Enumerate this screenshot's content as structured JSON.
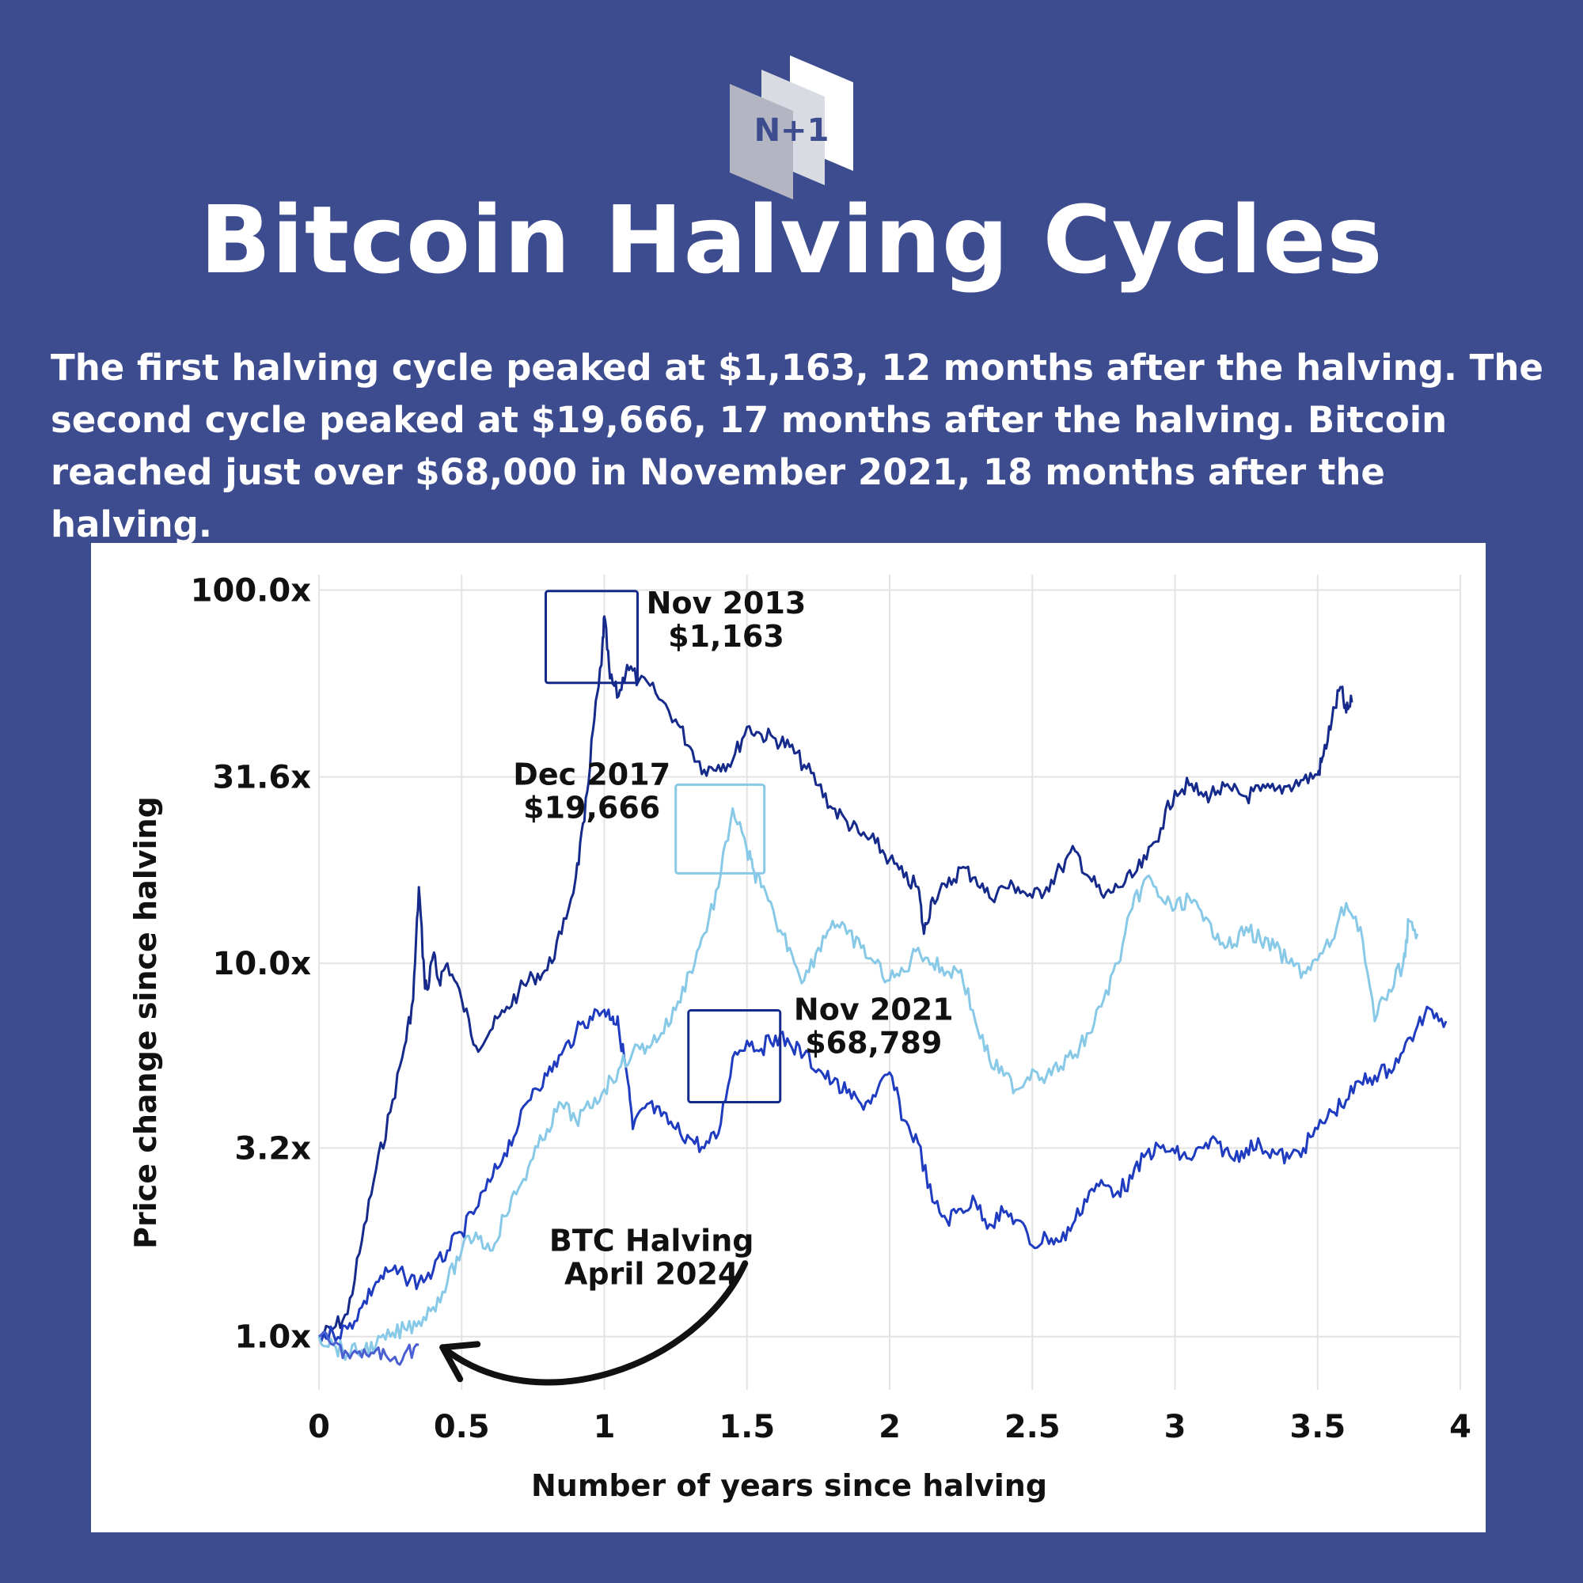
{
  "logo": {
    "text": "N+1"
  },
  "header": {
    "title": "Bitcoin Halving Cycles",
    "subtitle_lines": [
      "The first halving cycle peaked at $1,163, 12 months after the halving. The",
      "second cycle peaked at $19,666, 17 months after the halving. Bitcoin",
      "reached just over $68,000 in November 2021, 18 months after the halving."
    ]
  },
  "colors": {
    "background": "#3d4b8f",
    "panel": "#ffffff",
    "cycle1": "#152a8a",
    "cycle2": "#87c9e6",
    "cycle3": "#1f3cc0",
    "cycle4": "#4a5fd1",
    "grid": "#e3e3e3",
    "arrow": "#111111"
  },
  "chart_data": {
    "type": "line",
    "xlabel": "Number of years since halving",
    "ylabel": "Price change since halving",
    "y_scale": "log",
    "xlim": [
      0,
      4
    ],
    "ylim": [
      0.72,
      110
    ],
    "x_ticks": [
      0,
      0.5,
      1,
      1.5,
      2,
      2.5,
      3,
      3.5,
      4
    ],
    "x_tick_labels": [
      "0",
      "0.5",
      "1",
      "1.5",
      "2",
      "2.5",
      "3",
      "3.5",
      "4"
    ],
    "y_ticks": [
      1,
      3.2,
      10,
      31.6,
      100
    ],
    "y_tick_labels": [
      "1.0x",
      "3.2x",
      "10.0x",
      "31.6x",
      "100.0x"
    ],
    "grid": true,
    "series": [
      {
        "x": [
          0,
          0.05,
          0.1,
          0.15,
          0.2,
          0.25,
          0.3,
          0.33,
          0.35,
          0.37,
          0.38,
          0.4,
          0.42,
          0.45,
          0.5,
          0.55,
          0.6,
          0.65,
          0.7,
          0.75,
          0.8,
          0.85,
          0.9,
          0.93,
          0.96,
          0.99,
          1.0,
          1.02,
          1.05,
          1.08,
          1.12,
          1.18,
          1.25,
          1.3,
          1.35,
          1.4,
          1.45,
          1.5,
          1.55,
          1.6,
          1.65,
          1.7,
          1.75,
          1.8,
          1.85,
          1.9,
          1.95,
          2.0,
          2.05,
          2.1,
          2.12,
          2.15,
          2.2,
          2.25,
          2.3,
          2.35,
          2.4,
          2.45,
          2.5,
          2.55,
          2.6,
          2.65,
          2.7,
          2.75,
          2.8,
          2.85,
          2.9,
          2.95,
          3.0,
          3.05,
          3.1,
          3.15,
          3.2,
          3.25,
          3.3,
          3.35,
          3.4,
          3.45,
          3.5,
          3.52,
          3.55,
          3.58,
          3.6,
          3.62
        ],
        "values": [
          1.0,
          1.05,
          1.15,
          1.8,
          2.8,
          4.0,
          6.0,
          8.0,
          16.0,
          9.0,
          8.5,
          10.5,
          9.0,
          10.0,
          8.0,
          6.0,
          6.6,
          7.4,
          8.4,
          9.2,
          9.6,
          12.0,
          17.0,
          24.0,
          42.0,
          63.0,
          85.0,
          58.0,
          52.0,
          63.0,
          57.0,
          53.0,
          45.0,
          38.0,
          33.0,
          34.0,
          35.0,
          43.0,
          41.0,
          40.0,
          38.0,
          34.0,
          30.0,
          26.0,
          24.0,
          22.0,
          21.0,
          19.0,
          17.0,
          16.0,
          12.0,
          15.0,
          16.0,
          18.0,
          17.0,
          15.0,
          16.0,
          16.0,
          15.0,
          16.0,
          18.0,
          20.0,
          17.0,
          15.0,
          16.0,
          17.0,
          19.0,
          23.0,
          29.0,
          30.0,
          28.0,
          29.0,
          29.0,
          28.0,
          29.0,
          29.0,
          30.0,
          31.0,
          32.0,
          36.0,
          45.0,
          55.0,
          47.0,
          50.0
        ]
      },
      {
        "x": [
          0,
          0.05,
          0.1,
          0.15,
          0.2,
          0.25,
          0.3,
          0.35,
          0.4,
          0.45,
          0.5,
          0.55,
          0.6,
          0.65,
          0.7,
          0.75,
          0.8,
          0.85,
          0.9,
          0.95,
          1.0,
          1.03,
          1.05,
          1.08,
          1.1,
          1.15,
          1.2,
          1.25,
          1.3,
          1.35,
          1.4,
          1.45,
          1.5,
          1.55,
          1.6,
          1.65,
          1.7,
          1.75,
          1.8,
          1.85,
          1.9,
          1.95,
          2.0,
          2.05,
          2.1,
          2.15,
          2.2,
          2.25,
          2.3,
          2.35,
          2.4,
          2.45,
          2.5,
          2.55,
          2.6,
          2.65,
          2.7,
          2.75,
          2.8,
          2.85,
          2.9,
          2.95,
          3.0,
          3.05,
          3.1,
          3.15,
          3.2,
          3.25,
          3.3,
          3.35,
          3.4,
          3.45,
          3.5,
          3.55,
          3.6,
          3.65,
          3.7,
          3.75,
          3.8,
          3.85,
          3.9,
          3.95
        ],
        "values": [
          1.0,
          1.02,
          1.05,
          1.2,
          1.4,
          1.5,
          1.45,
          1.4,
          1.5,
          1.7,
          1.9,
          2.2,
          2.6,
          3.1,
          3.7,
          4.6,
          5.0,
          5.7,
          6.5,
          7.2,
          7.5,
          7.2,
          6.8,
          5.0,
          3.6,
          4.2,
          3.9,
          3.6,
          3.4,
          3.2,
          3.5,
          5.6,
          6.2,
          5.9,
          6.4,
          6.1,
          5.7,
          5.2,
          4.8,
          4.5,
          4.2,
          4.4,
          5.1,
          3.8,
          3.3,
          2.3,
          2.05,
          2.2,
          2.3,
          2.0,
          2.15,
          2.05,
          1.75,
          1.85,
          1.8,
          2.05,
          2.45,
          2.55,
          2.45,
          2.65,
          3.1,
          3.2,
          3.1,
          3.0,
          3.2,
          3.3,
          3.0,
          3.2,
          3.25,
          3.1,
          3.0,
          3.2,
          3.6,
          4.0,
          4.3,
          4.8,
          5.0,
          5.2,
          5.8,
          6.8,
          7.5,
          7.0
        ]
      },
      {
        "x": [
          0,
          0.05,
          0.1,
          0.15,
          0.2,
          0.25,
          0.3,
          0.35,
          0.4,
          0.45,
          0.5,
          0.55,
          0.6,
          0.65,
          0.7,
          0.75,
          0.8,
          0.85,
          0.9,
          0.95,
          1.0,
          1.05,
          1.1,
          1.15,
          1.2,
          1.25,
          1.3,
          1.35,
          1.4,
          1.45,
          1.5,
          1.52,
          1.55,
          1.6,
          1.65,
          1.7,
          1.75,
          1.8,
          1.85,
          1.9,
          1.95,
          2.0,
          2.05,
          2.1,
          2.15,
          2.2,
          2.25,
          2.3,
          2.35,
          2.4,
          2.45,
          2.5,
          2.55,
          2.6,
          2.65,
          2.7,
          2.75,
          2.8,
          2.85,
          2.9,
          2.95,
          3.0,
          3.05,
          3.1,
          3.15,
          3.2,
          3.25,
          3.3,
          3.35,
          3.4,
          3.45,
          3.5,
          3.55,
          3.6,
          3.65,
          3.7,
          3.75,
          3.8,
          3.82,
          3.85
        ],
        "values": [
          1.0,
          0.95,
          0.9,
          0.92,
          0.95,
          1.0,
          1.05,
          1.1,
          1.2,
          1.4,
          1.7,
          1.9,
          1.7,
          2.1,
          2.5,
          3.0,
          3.6,
          4.2,
          3.8,
          4.1,
          4.6,
          5.2,
          5.8,
          6.0,
          6.5,
          7.5,
          9.5,
          12.0,
          16.0,
          26.0,
          20.0,
          18.0,
          16.0,
          13.0,
          11.0,
          9.0,
          11.0,
          13.0,
          12.0,
          11.0,
          10.0,
          9.0,
          9.5,
          11.0,
          10.0,
          9.5,
          9.6,
          7.0,
          5.5,
          5.0,
          4.6,
          5.2,
          5.0,
          5.3,
          5.7,
          6.5,
          8.0,
          10.0,
          14.0,
          17.0,
          15.0,
          14.0,
          15.0,
          13.0,
          12.0,
          11.0,
          12.5,
          11.5,
          11.0,
          10.0,
          9.5,
          10.2,
          11.5,
          14.5,
          12.5,
          7.0,
          8.5,
          10.0,
          13.0,
          12.0
        ]
      },
      {
        "x": [
          0,
          0.05,
          0.1,
          0.15,
          0.2,
          0.25,
          0.3,
          0.35
        ],
        "values": [
          1.0,
          0.95,
          0.9,
          0.88,
          0.92,
          0.86,
          0.9,
          0.95
        ]
      }
    ],
    "annotations": [
      {
        "lines": [
          "Nov 2013",
          "$1,163"
        ],
        "x": 1.0,
        "y": 85.0
      },
      {
        "lines": [
          "Dec 2017",
          "$19,666"
        ],
        "x": 1.45,
        "y": 26.0
      },
      {
        "lines": [
          "Nov 2021",
          "$68,789"
        ],
        "x": 1.5,
        "y": 6.4
      },
      {
        "lines": [
          "BTC Halving",
          "April 2024"
        ],
        "x": 0.4,
        "y": 0.9
      }
    ]
  }
}
